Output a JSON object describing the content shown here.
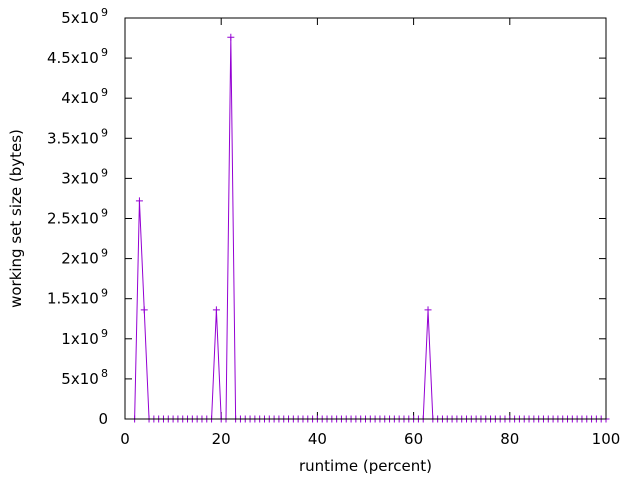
{
  "chart_data": {
    "type": "line",
    "title": "",
    "xlabel": "runtime (percent)",
    "ylabel": "working set size (bytes)",
    "xlim": [
      0,
      100
    ],
    "ylim": [
      0,
      5000000000
    ],
    "grid": false,
    "legend": "none",
    "marker": "plus",
    "series_color": "#9400d3",
    "x_ticks": [
      {
        "value": 0,
        "label": "0"
      },
      {
        "value": 20,
        "label": "20"
      },
      {
        "value": 40,
        "label": "40"
      },
      {
        "value": 60,
        "label": "60"
      },
      {
        "value": 80,
        "label": "80"
      },
      {
        "value": 100,
        "label": "100"
      }
    ],
    "y_ticks": [
      {
        "value": 0,
        "mantissa": "0",
        "exponent": ""
      },
      {
        "value": 500000000,
        "mantissa": "5x10",
        "exponent": "8"
      },
      {
        "value": 1000000000,
        "mantissa": "1x10",
        "exponent": "9"
      },
      {
        "value": 1500000000,
        "mantissa": "1.5x10",
        "exponent": "9"
      },
      {
        "value": 2000000000,
        "mantissa": "2x10",
        "exponent": "9"
      },
      {
        "value": 2500000000,
        "mantissa": "2.5x10",
        "exponent": "9"
      },
      {
        "value": 3000000000,
        "mantissa": "3x10",
        "exponent": "9"
      },
      {
        "value": 3500000000,
        "mantissa": "3.5x10",
        "exponent": "9"
      },
      {
        "value": 4000000000,
        "mantissa": "4x10",
        "exponent": "9"
      },
      {
        "value": 4500000000,
        "mantissa": "4.5x10",
        "exponent": "9"
      },
      {
        "value": 5000000000,
        "mantissa": "5x10",
        "exponent": "9"
      }
    ],
    "series": [
      {
        "values": [
          [
            2,
            0
          ],
          [
            3,
            2720000000
          ],
          [
            4,
            1360000000
          ],
          [
            5,
            0
          ],
          [
            6,
            0
          ],
          [
            7,
            0
          ],
          [
            8,
            0
          ],
          [
            9,
            0
          ],
          [
            10,
            0
          ],
          [
            11,
            0
          ],
          [
            12,
            0
          ],
          [
            13,
            0
          ],
          [
            14,
            0
          ],
          [
            15,
            0
          ],
          [
            16,
            0
          ],
          [
            17,
            0
          ],
          [
            18,
            0
          ],
          [
            19,
            1360000000
          ],
          [
            20,
            0
          ],
          [
            21,
            0
          ],
          [
            22,
            4760000000
          ],
          [
            23,
            0
          ],
          [
            24,
            0
          ],
          [
            25,
            0
          ],
          [
            26,
            0
          ],
          [
            27,
            0
          ],
          [
            28,
            0
          ],
          [
            29,
            0
          ],
          [
            30,
            0
          ],
          [
            31,
            0
          ],
          [
            32,
            0
          ],
          [
            33,
            0
          ],
          [
            34,
            0
          ],
          [
            35,
            0
          ],
          [
            36,
            0
          ],
          [
            37,
            0
          ],
          [
            38,
            0
          ],
          [
            39,
            0
          ],
          [
            40,
            0
          ],
          [
            41,
            0
          ],
          [
            42,
            0
          ],
          [
            43,
            0
          ],
          [
            44,
            0
          ],
          [
            45,
            0
          ],
          [
            46,
            0
          ],
          [
            47,
            0
          ],
          [
            48,
            0
          ],
          [
            49,
            0
          ],
          [
            50,
            0
          ],
          [
            51,
            0
          ],
          [
            52,
            0
          ],
          [
            53,
            0
          ],
          [
            54,
            0
          ],
          [
            55,
            0
          ],
          [
            56,
            0
          ],
          [
            57,
            0
          ],
          [
            58,
            0
          ],
          [
            59,
            0
          ],
          [
            60,
            0
          ],
          [
            61,
            0
          ],
          [
            62,
            0
          ],
          [
            63,
            1360000000
          ],
          [
            64,
            0
          ],
          [
            65,
            0
          ],
          [
            66,
            0
          ],
          [
            67,
            0
          ],
          [
            68,
            0
          ],
          [
            69,
            0
          ],
          [
            70,
            0
          ],
          [
            71,
            0
          ],
          [
            72,
            0
          ],
          [
            73,
            0
          ],
          [
            74,
            0
          ],
          [
            75,
            0
          ],
          [
            76,
            0
          ],
          [
            77,
            0
          ],
          [
            78,
            0
          ],
          [
            79,
            0
          ],
          [
            80,
            0
          ],
          [
            81,
            0
          ],
          [
            82,
            0
          ],
          [
            83,
            0
          ],
          [
            84,
            0
          ],
          [
            85,
            0
          ],
          [
            86,
            0
          ],
          [
            87,
            0
          ],
          [
            88,
            0
          ],
          [
            89,
            0
          ],
          [
            90,
            0
          ],
          [
            91,
            0
          ],
          [
            92,
            0
          ],
          [
            93,
            0
          ],
          [
            94,
            0
          ],
          [
            95,
            0
          ],
          [
            96,
            0
          ],
          [
            97,
            0
          ],
          [
            98,
            0
          ],
          [
            99,
            0
          ],
          [
            100,
            0
          ]
        ]
      }
    ]
  }
}
